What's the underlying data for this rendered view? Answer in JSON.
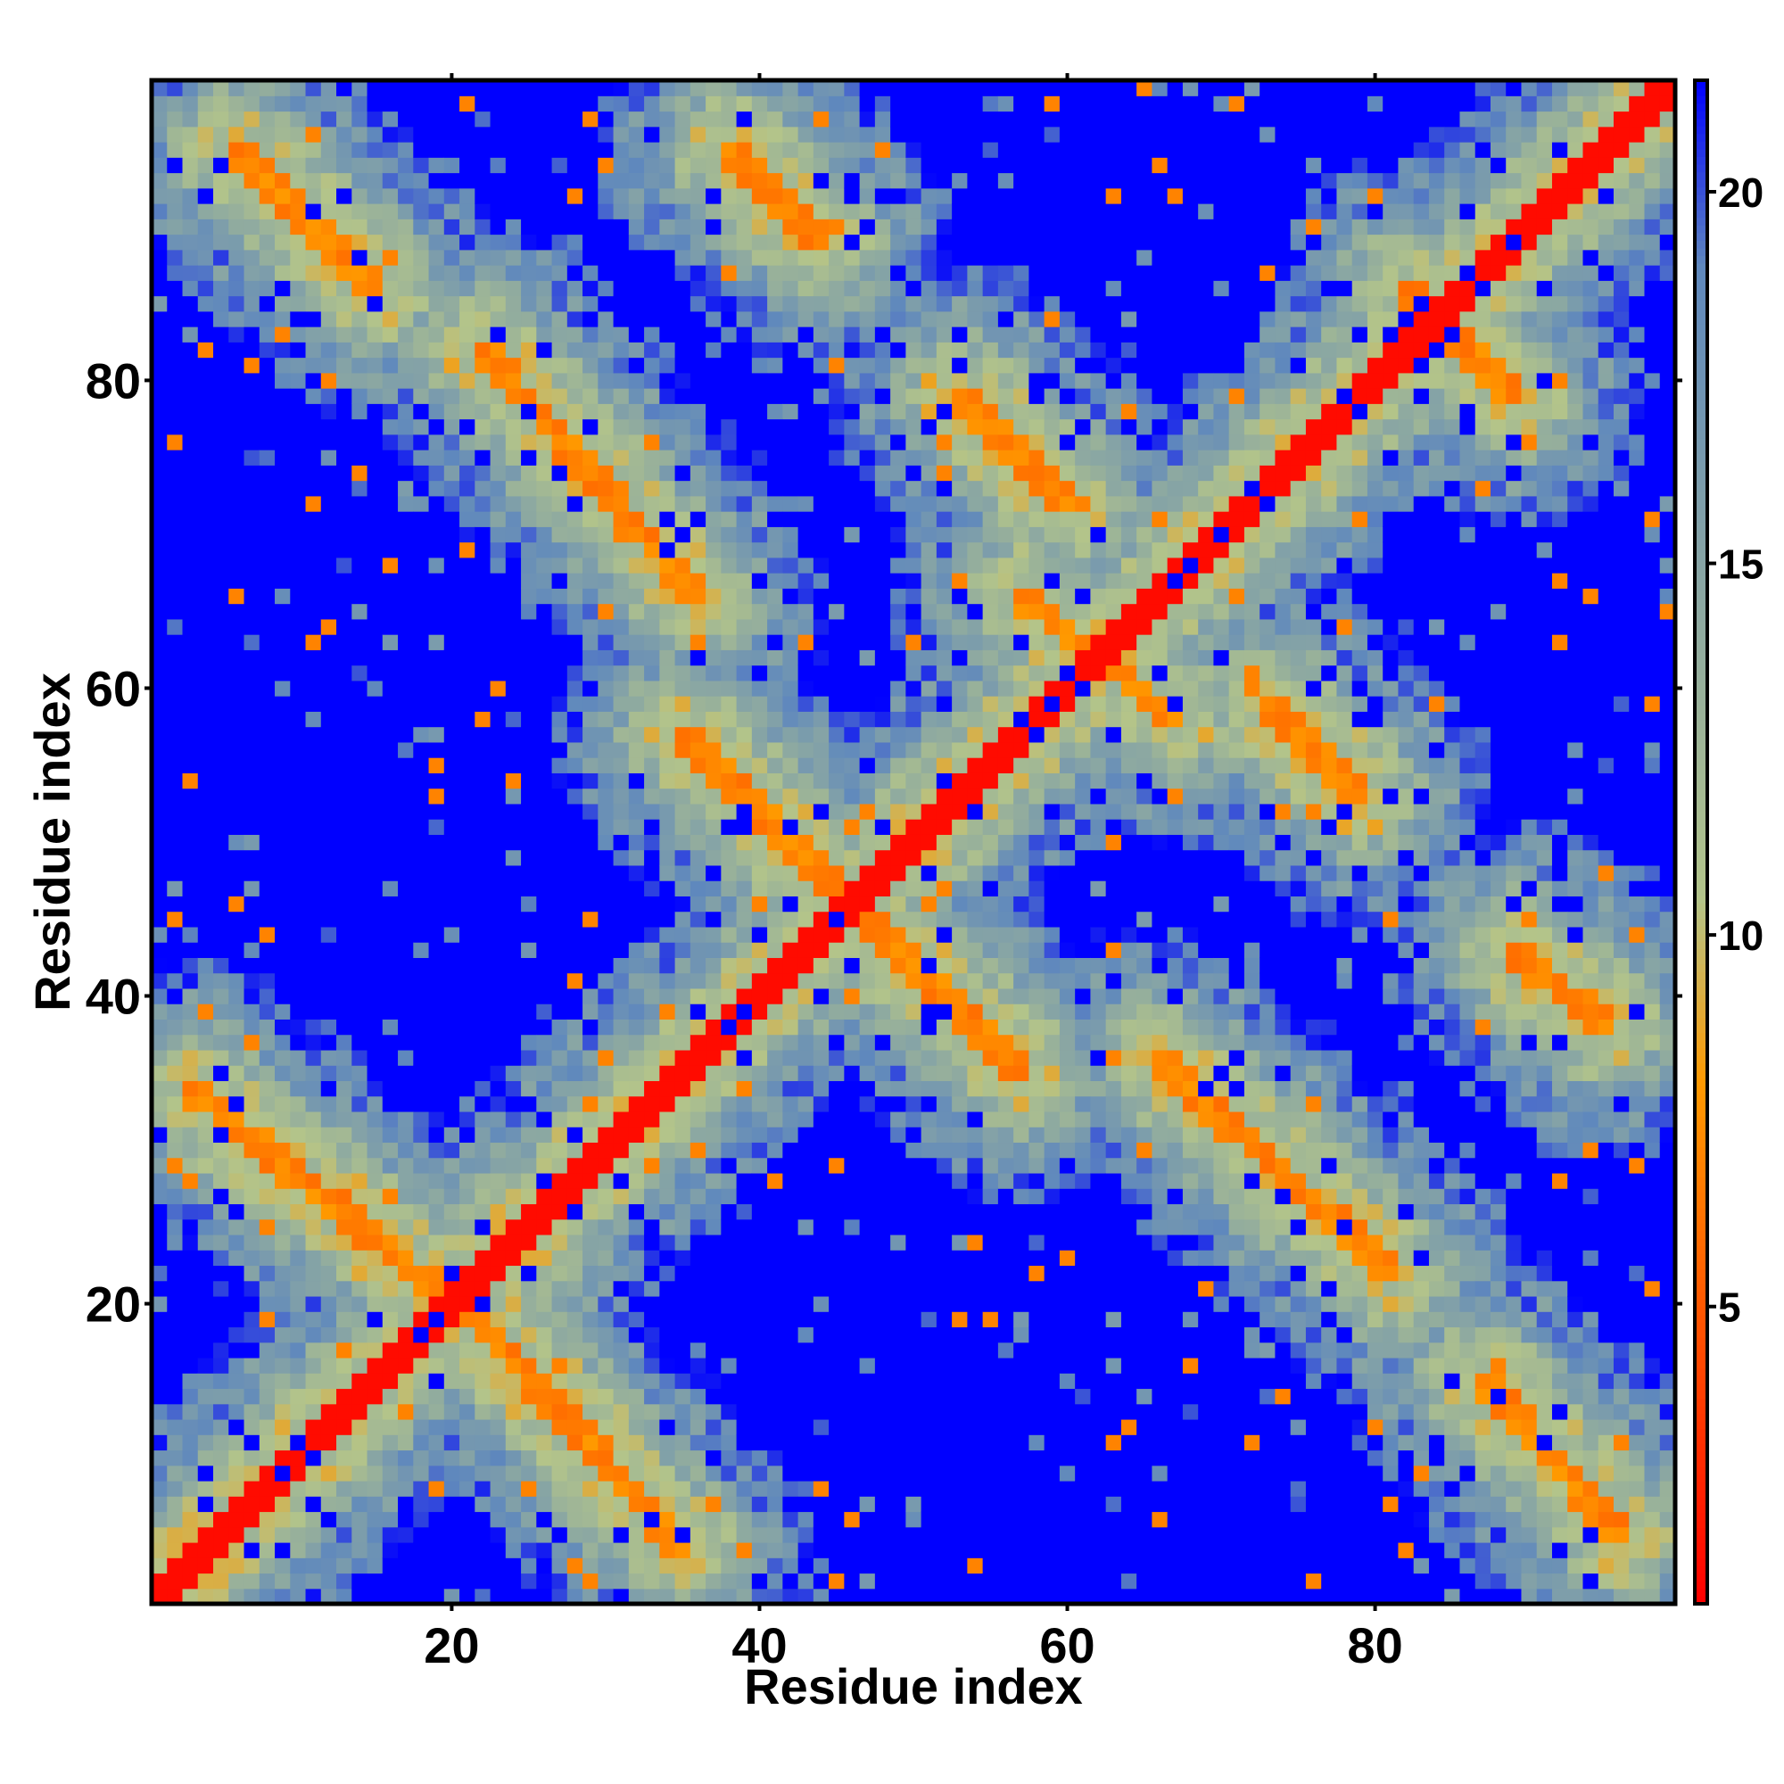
{
  "chart_data": {
    "type": "heatmap",
    "title": "",
    "xlabel": "Residue index",
    "ylabel": "Residue index",
    "n_residues": 99,
    "xlim": [
      1,
      99
    ],
    "ylim": [
      1,
      99
    ],
    "x_ticks": [
      20,
      40,
      60,
      80
    ],
    "y_ticks": [
      20,
      40,
      60,
      80
    ],
    "colorbar": {
      "ticks": [
        5,
        10,
        15,
        20
      ],
      "range": [
        1,
        21.5
      ],
      "colors": [
        "#ff0000",
        "#ff9900",
        "#b3c48a",
        "#5f88bd",
        "#0000ff"
      ],
      "stops": [
        1,
        8,
        10.5,
        19,
        21.5
      ]
    },
    "description_of_values": "Pairwise residue distance map; diagonal values near 1, far contacts saturate above 21",
    "contact_bands": [
      {
        "x0": 1,
        "y0": 1,
        "x1": 99,
        "y1": 99
      },
      {
        "x0": 20,
        "y0": 21,
        "x1": 35,
        "y1": 4
      },
      {
        "x0": 19,
        "y0": 21,
        "x1": 3,
        "y1": 34
      },
      {
        "x0": 46,
        "y0": 46,
        "x1": 35,
        "y1": 57
      },
      {
        "x0": 46,
        "y0": 46,
        "x1": 57,
        "y1": 35
      },
      {
        "x0": 22,
        "y0": 82,
        "x1": 36,
        "y1": 66
      },
      {
        "x0": 6,
        "y0": 95,
        "x1": 15,
        "y1": 86
      },
      {
        "x0": 38,
        "y0": 95,
        "x1": 44,
        "y1": 89
      },
      {
        "x0": 53,
        "y0": 79,
        "x1": 60,
        "y1": 72
      },
      {
        "x0": 57,
        "y0": 66,
        "x1": 67,
        "y1": 58
      },
      {
        "x0": 73,
        "y0": 59,
        "x1": 79,
        "y1": 53
      },
      {
        "x0": 66,
        "y0": 36,
        "x1": 81,
        "y1": 22
      },
      {
        "x0": 87,
        "y0": 15,
        "x1": 96,
        "y1": 5
      },
      {
        "x0": 89,
        "y0": 43,
        "x1": 95,
        "y1": 38
      },
      {
        "x0": 82,
        "y0": 86,
        "x1": 89,
        "y1": 79
      }
    ]
  }
}
